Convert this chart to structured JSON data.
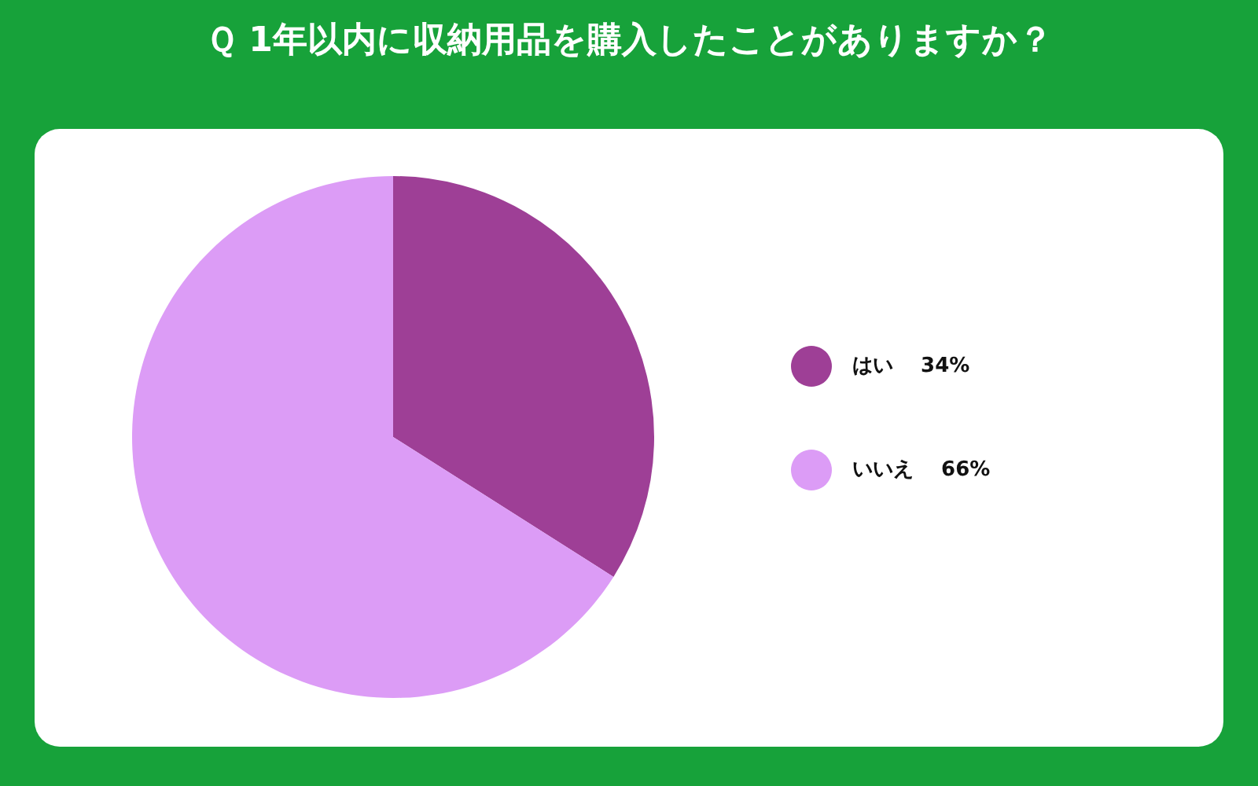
{
  "chart_data": {
    "type": "pie",
    "title": "Ｑ 1年以内に収納用品を購入したことがありますか？",
    "categories": [
      "はい",
      "いいえ"
    ],
    "values": [
      34,
      66
    ],
    "colors": [
      "#9e3f96",
      "#dc9cf6"
    ],
    "value_labels": [
      "34%",
      "66%"
    ],
    "legend": "right"
  }
}
